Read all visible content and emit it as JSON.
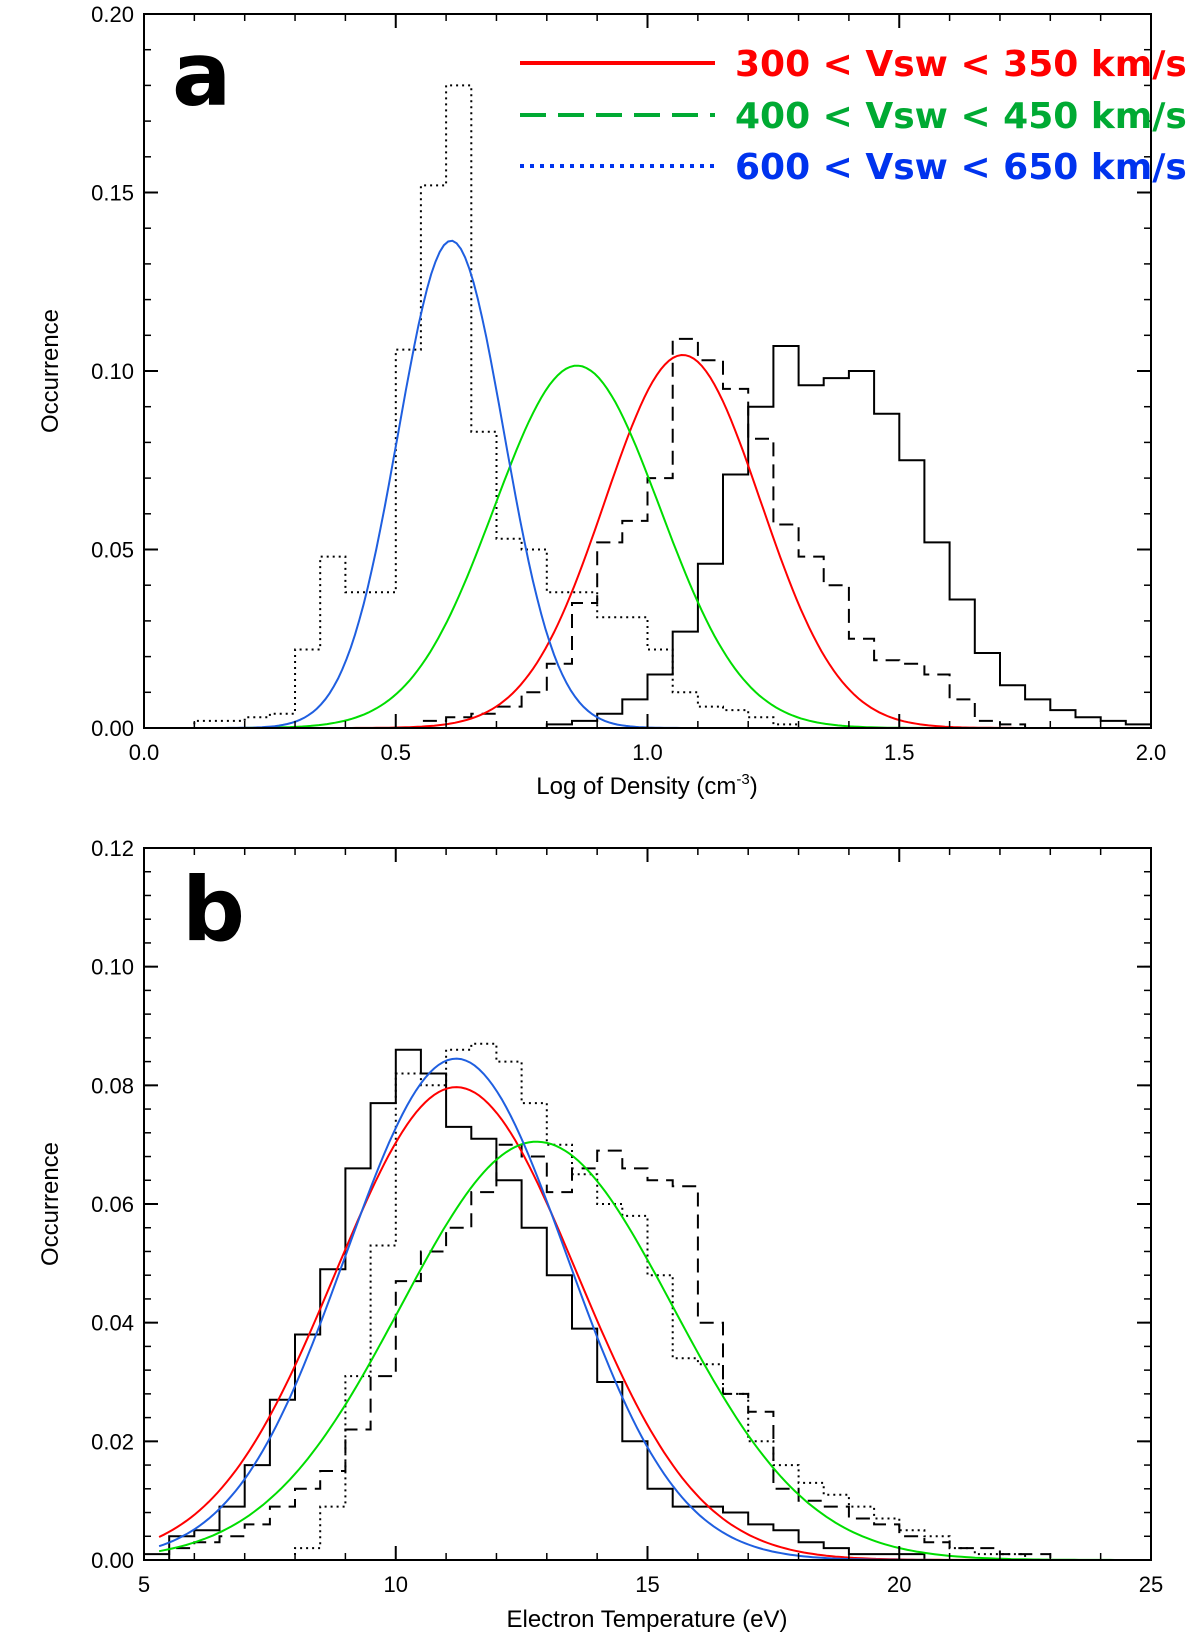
{
  "colors": {
    "red": "#ff0000",
    "green": "#00dd00",
    "blue": "#1f5fe0",
    "legend_red": "#ff0000",
    "legend_green": "#00aa33",
    "legend_blue": "#0033ee"
  },
  "chart_data": [
    {
      "panel": "a",
      "type": "line",
      "xlabel": "Log of Density (cm",
      "xlabel_sup": "-3",
      "xlabel_close": ")",
      "ylabel": "Occurrence",
      "xlim": [
        0.0,
        2.0
      ],
      "ylim": [
        0.0,
        0.2
      ],
      "xticks": [
        0.0,
        0.5,
        1.0,
        1.5,
        2.0
      ],
      "xtick_labels": [
        "0.0",
        "0.5",
        "1.0",
        "1.5",
        "2.0"
      ],
      "yticks": [
        0.0,
        0.05,
        0.1,
        0.15,
        0.2
      ],
      "ytick_labels": [
        "0.00",
        "0.05",
        "0.10",
        "0.15",
        "0.20"
      ],
      "legend": [
        {
          "label": "300 < Vsw < 350 km/s",
          "color": "#ff0000",
          "style": "solid"
        },
        {
          "label": "400 < Vsw < 450 km/s",
          "color": "#00aa33",
          "style": "dashed"
        },
        {
          "label": "600 < Vsw < 650 km/s",
          "color": "#0033ee",
          "style": "dotted"
        }
      ],
      "histograms": [
        {
          "name": "300-350 histogram",
          "style": "solid",
          "edges_start": 0.0,
          "bin_width": 0.05,
          "values": [
            0,
            0,
            0,
            0,
            0,
            0,
            0,
            0,
            0,
            0,
            0,
            0,
            0,
            0,
            0,
            0,
            0.001,
            0.002,
            0.004,
            0.008,
            0.015,
            0.027,
            0.046,
            0.071,
            0.09,
            0.107,
            0.096,
            0.098,
            0.1,
            0.088,
            0.075,
            0.052,
            0.036,
            0.021,
            0.012,
            0.008,
            0.005,
            0.003,
            0.002,
            0.001,
            0,
            0
          ]
        },
        {
          "name": "400-450 histogram",
          "style": "dashed",
          "edges_start": 0.0,
          "bin_width": 0.05,
          "values": [
            0,
            0,
            0,
            0,
            0,
            0,
            0,
            0,
            0,
            0,
            0,
            0.002,
            0.003,
            0.004,
            0.006,
            0.01,
            0.018,
            0.035,
            0.052,
            0.058,
            0.07,
            0.109,
            0.103,
            0.095,
            0.081,
            0.057,
            0.048,
            0.04,
            0.025,
            0.019,
            0.018,
            0.015,
            0.008,
            0.002,
            0.001,
            0,
            0,
            0,
            0,
            0,
            0,
            0
          ]
        },
        {
          "name": "600-650 histogram",
          "style": "dotted",
          "edges_start": 0.0,
          "bin_width": 0.05,
          "values": [
            0,
            0,
            0.002,
            0.002,
            0.003,
            0.004,
            0.022,
            0.048,
            0.038,
            0.038,
            0.106,
            0.152,
            0.18,
            0.083,
            0.053,
            0.05,
            0.038,
            0.038,
            0.031,
            0.031,
            0.022,
            0.01,
            0.006,
            0.005,
            0.003,
            0.001,
            0,
            0,
            0,
            0,
            0,
            0,
            0,
            0,
            0,
            0,
            0,
            0,
            0,
            0,
            0
          ]
        }
      ],
      "fits": [
        {
          "name": "300-350 fit",
          "color": "#ff0000",
          "mu": 1.07,
          "sigma": 0.155,
          "peak": 0.1045,
          "xmin": 0.2,
          "xmax": 2.0
        },
        {
          "name": "400-450 fit",
          "color": "#00dd00",
          "mu": 0.86,
          "sigma": 0.165,
          "peak": 0.1015,
          "xmin": 0.2,
          "xmax": 2.0
        },
        {
          "name": "600-650 fit",
          "color": "#1f5fe0",
          "mu": 0.61,
          "sigma": 0.105,
          "peak": 0.1365,
          "xmin": 0.15,
          "xmax": 2.0
        }
      ]
    },
    {
      "panel": "b",
      "type": "line",
      "xlabel": "Electron Temperature (eV)",
      "ylabel": "Occurrence",
      "xlim": [
        5,
        25
      ],
      "ylim": [
        0.0,
        0.12
      ],
      "xticks": [
        5,
        10,
        15,
        20,
        25
      ],
      "xtick_labels": [
        "5",
        "10",
        "15",
        "20",
        "25"
      ],
      "yticks": [
        0.0,
        0.02,
        0.04,
        0.06,
        0.08,
        0.1,
        0.12
      ],
      "ytick_labels": [
        "0.00",
        "0.02",
        "0.04",
        "0.06",
        "0.08",
        "0.10",
        "0.12"
      ],
      "histograms": [
        {
          "name": "300-350 histogram",
          "style": "solid",
          "edges_start": 5.0,
          "bin_width": 0.5,
          "values": [
            0.001,
            0.004,
            0.005,
            0.009,
            0.016,
            0.027,
            0.038,
            0.049,
            0.066,
            0.077,
            0.086,
            0.082,
            0.073,
            0.071,
            0.064,
            0.056,
            0.048,
            0.039,
            0.03,
            0.02,
            0.012,
            0.009,
            0.009,
            0.008,
            0.006,
            0.005,
            0.003,
            0.002,
            0.001,
            0.001,
            0.001,
            0,
            0,
            0,
            0,
            0,
            0,
            0,
            0,
            0
          ]
        },
        {
          "name": "400-450 histogram",
          "style": "dashed",
          "edges_start": 5.0,
          "bin_width": 0.5,
          "values": [
            0,
            0.002,
            0.003,
            0.004,
            0.006,
            0.009,
            0.012,
            0.015,
            0.022,
            0.031,
            0.047,
            0.052,
            0.056,
            0.062,
            0.07,
            0.068,
            0.062,
            0.066,
            0.069,
            0.066,
            0.064,
            0.063,
            0.04,
            0.028,
            0.025,
            0.012,
            0.01,
            0.009,
            0.007,
            0.006,
            0.004,
            0.003,
            0.002,
            0.002,
            0.001,
            0.001,
            0,
            0,
            0,
            0
          ]
        },
        {
          "name": "600-650 histogram",
          "style": "dotted",
          "edges_start": 5.0,
          "bin_width": 0.5,
          "values": [
            0,
            0,
            0,
            0,
            0,
            0,
            0.002,
            0.009,
            0.031,
            0.053,
            0.082,
            0.08,
            0.086,
            0.087,
            0.084,
            0.077,
            0.07,
            0.065,
            0.06,
            0.058,
            0.048,
            0.034,
            0.033,
            0.028,
            0.02,
            0.016,
            0.013,
            0.011,
            0.009,
            0.007,
            0.005,
            0.004,
            0.002,
            0.001,
            0.001,
            0,
            0,
            0,
            0,
            0
          ]
        }
      ],
      "fits": [
        {
          "name": "300-350 fit",
          "color": "#ff0000",
          "mu": 11.2,
          "sigma": 2.4,
          "peak": 0.0797,
          "xmin": 5.3,
          "xmax": 25
        },
        {
          "name": "400-450 fit",
          "color": "#00dd00",
          "mu": 12.8,
          "sigma": 2.7,
          "peak": 0.0705,
          "xmin": 5.3,
          "xmax": 25
        },
        {
          "name": "600-650 fit",
          "color": "#1f5fe0",
          "mu": 11.2,
          "sigma": 2.2,
          "peak": 0.0845,
          "xmin": 5.3,
          "xmax": 25
        }
      ]
    }
  ]
}
